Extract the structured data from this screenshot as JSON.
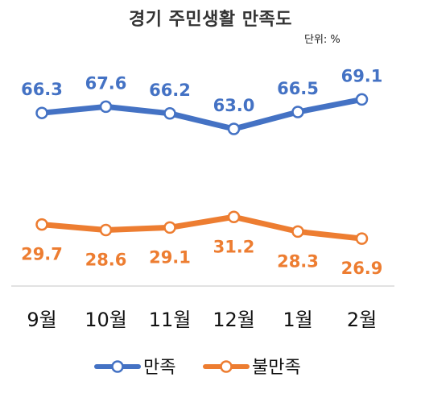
{
  "chart_data": {
    "type": "line",
    "title": "경기 주민생활 만족도",
    "unit": "단위: %",
    "categories": [
      "9월",
      "10월",
      "11월",
      "12월",
      "1월",
      "2월"
    ],
    "series": [
      {
        "name": "만족",
        "color": "#4472C4",
        "values": [
          66.3,
          67.6,
          66.2,
          63.0,
          66.5,
          69.1
        ],
        "labels": [
          "66.3",
          "67.6",
          "66.2",
          "63.0",
          "66.5",
          "69.1"
        ]
      },
      {
        "name": "불만족",
        "color": "#ED7D31",
        "values": [
          29.7,
          28.6,
          29.1,
          31.2,
          28.3,
          26.9
        ],
        "labels": [
          "29.7",
          "28.6",
          "29.1",
          "31.2",
          "28.3",
          "26.9"
        ]
      }
    ],
    "legend_position": "bottom",
    "grid": false
  }
}
